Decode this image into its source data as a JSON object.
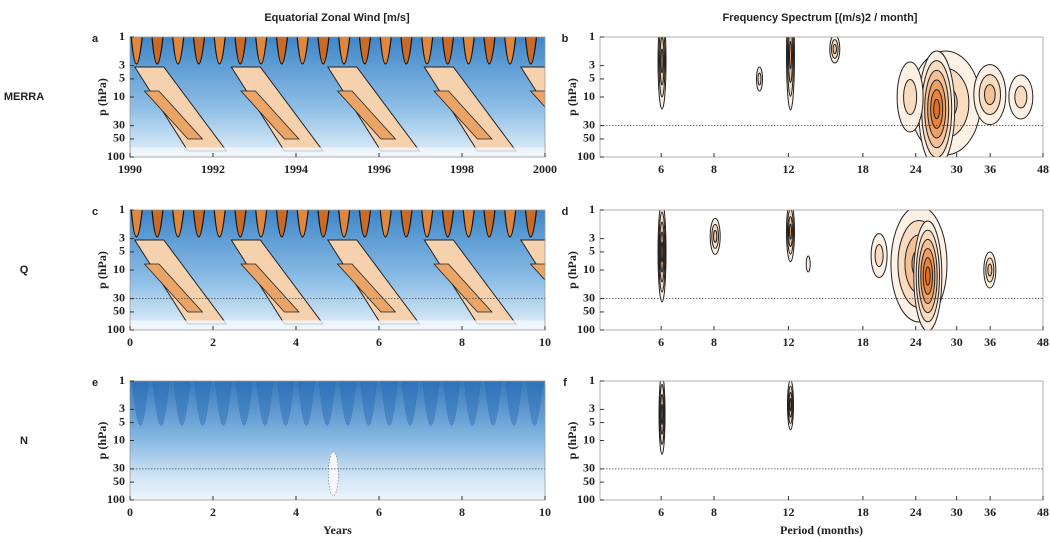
{
  "figure": {
    "column_titles": [
      "Equatorial Zonal Wind  [m/s]",
      "Frequency Spectrum  [(m/s)2 / month]"
    ],
    "row_labels": [
      "MERRA",
      "Q",
      "N"
    ]
  },
  "chart_data": [
    {
      "type": "contour",
      "panel": "a",
      "ylabel": "p (hPa)",
      "yscale": "log",
      "ylim": [
        100,
        1
      ],
      "yticks": [
        1,
        3,
        5,
        10,
        30,
        50,
        100
      ],
      "xlim": [
        1990,
        2000
      ],
      "xticks": [
        1990,
        1992,
        1994,
        1996,
        1998,
        2000
      ]
    },
    {
      "type": "spectrum",
      "panel": "b",
      "ylabel": "p (hPa)",
      "yscale": "log",
      "ylim": [
        100,
        1
      ],
      "yticks": [
        1,
        3,
        5,
        10,
        30,
        50,
        100
      ],
      "xscale": "log",
      "xlim": [
        4.3,
        48
      ],
      "xticks": [
        6,
        8,
        12,
        18,
        24,
        30,
        36,
        48
      ],
      "reference_line": 30
    },
    {
      "type": "contour",
      "panel": "c",
      "ylabel": "p (hPa)",
      "yscale": "log",
      "ylim": [
        100,
        1
      ],
      "yticks": [
        1,
        3,
        5,
        10,
        30,
        50,
        100
      ],
      "xlim": [
        0,
        10
      ],
      "xticks": [
        0,
        2,
        4,
        6,
        8,
        10
      ],
      "reference_line": 30
    },
    {
      "type": "spectrum",
      "panel": "d",
      "ylabel": "p (hPa)",
      "yscale": "log",
      "ylim": [
        100,
        1
      ],
      "yticks": [
        1,
        3,
        5,
        10,
        30,
        50,
        100
      ],
      "xscale": "log",
      "xlim": [
        4.3,
        48
      ],
      "xticks": [
        6,
        8,
        12,
        18,
        24,
        30,
        36,
        48
      ],
      "reference_line": 30
    },
    {
      "type": "contour",
      "panel": "e",
      "ylabel": "p (hPa)",
      "xlabel": "Years",
      "yscale": "log",
      "ylim": [
        100,
        1
      ],
      "yticks": [
        1,
        3,
        5,
        10,
        30,
        50,
        100
      ],
      "xlim": [
        0,
        10
      ],
      "xticks": [
        0,
        2,
        4,
        6,
        8,
        10
      ],
      "reference_line": 30
    },
    {
      "type": "spectrum",
      "panel": "f",
      "ylabel": "p (hPa)",
      "xlabel": "Period (months)",
      "yscale": "log",
      "ylim": [
        100,
        1
      ],
      "yticks": [
        1,
        3,
        5,
        10,
        30,
        50,
        100
      ],
      "xscale": "log",
      "xlim": [
        4.3,
        48
      ],
      "xticks": [
        6,
        8,
        12,
        18,
        24,
        30,
        36,
        48
      ],
      "reference_line": 30
    }
  ]
}
